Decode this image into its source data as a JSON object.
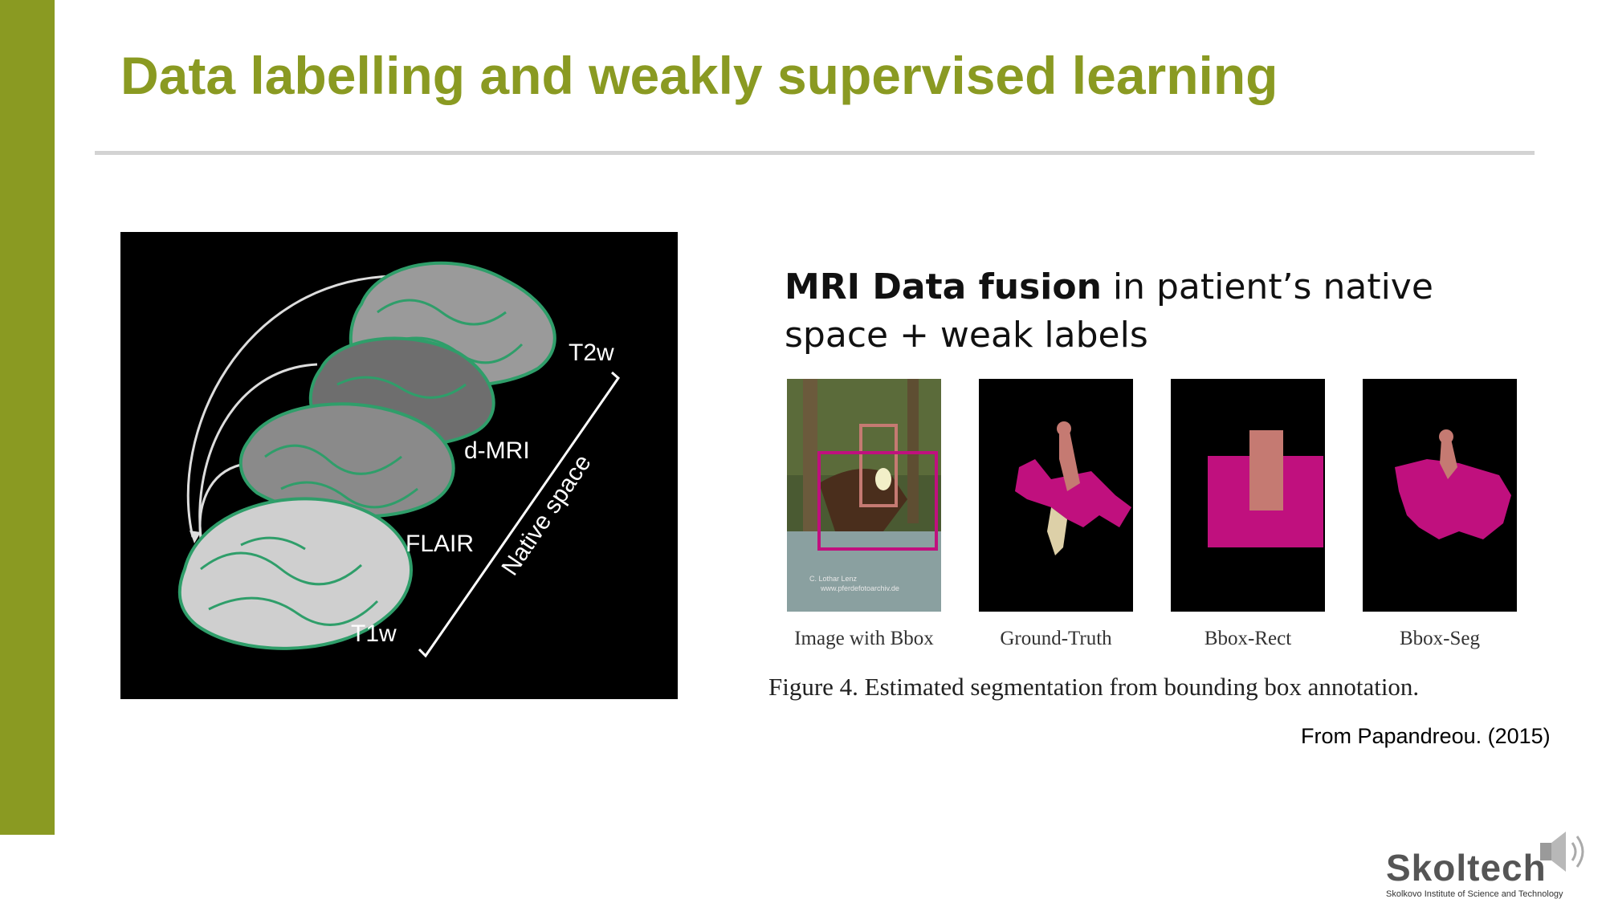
{
  "slide": {
    "title": "Data labelling and weakly supervised learning",
    "accent_color": "#8a9a22"
  },
  "brain_figure": {
    "labels": [
      "T2w",
      "d-MRI",
      "FLAIR",
      "T1w"
    ],
    "axis_label": "Native space"
  },
  "fusion_text": {
    "bold": "MRI Data fusion",
    "rest": " in patient’s native space + weak labels"
  },
  "segmentation_figure": {
    "panels": [
      {
        "label": "Image with Bbox",
        "watermark": "C. Lothar Lenz\nwww.pferdefotoarchiv.de"
      },
      {
        "label": "Ground-Truth"
      },
      {
        "label": "Bbox-Rect"
      },
      {
        "label": "Bbox-Seg"
      }
    ],
    "caption": "Figure 4. Estimated segmentation from bounding box annotation.",
    "segment_color": "#c0107e",
    "person_color": "#c57a72"
  },
  "source": "From Papandreou. (2015)",
  "logo": {
    "brand_part1": "Skol",
    "brand_part2": "tech",
    "tagline": "Skolkovo Institute of Science and Technology"
  },
  "icons": {
    "audio": "speaker-icon"
  }
}
